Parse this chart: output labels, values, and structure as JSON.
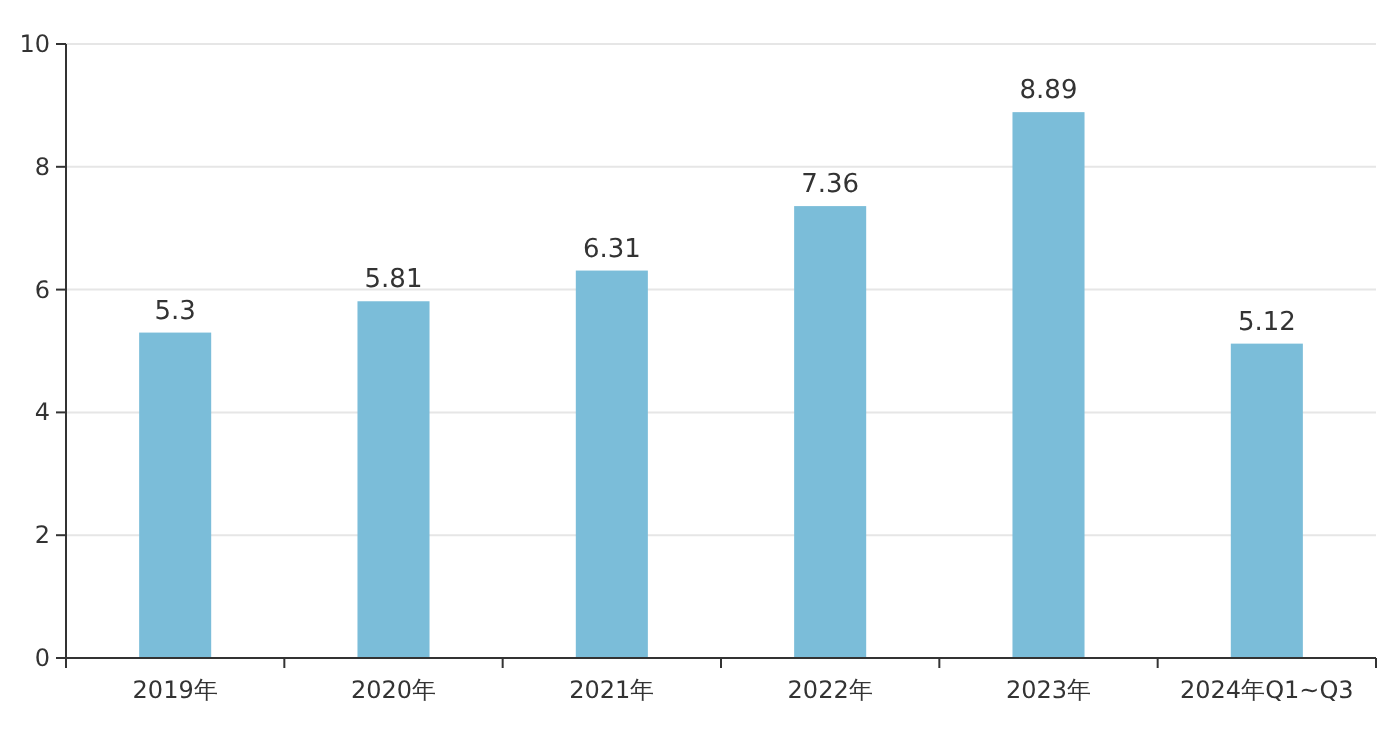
{
  "chart_data": {
    "type": "bar",
    "categories": [
      "2019年",
      "2020年",
      "2021年",
      "2022年",
      "2023年",
      "2024年Q1~Q3"
    ],
    "values": [
      5.3,
      5.81,
      6.31,
      7.36,
      8.89,
      5.12
    ],
    "color": "#7bbdd9",
    "ylim": [
      0,
      10
    ],
    "yticks": [
      0,
      2,
      4,
      6,
      8,
      10
    ],
    "grid": "y",
    "data_labels": true
  }
}
